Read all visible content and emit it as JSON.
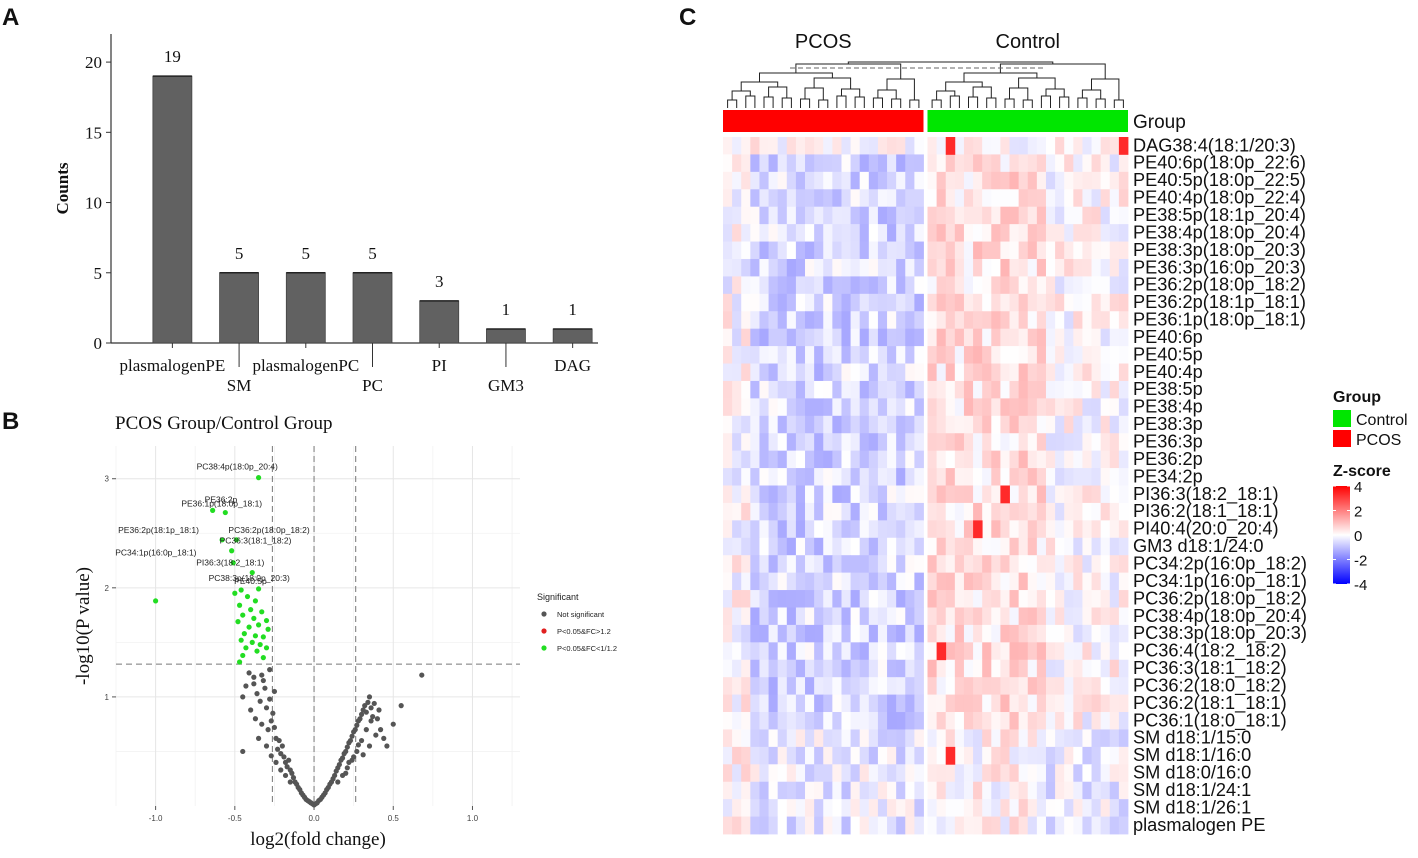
{
  "panels": {
    "a": {
      "letter": "A"
    },
    "b": {
      "letter": "B"
    },
    "c": {
      "letter": "C"
    }
  },
  "chart_data": [
    {
      "id": "panelA",
      "type": "bar",
      "title": "",
      "ylabel": "Counts",
      "xlabel": "",
      "ylim": [
        0,
        22
      ],
      "yticks": [
        0,
        5,
        10,
        15,
        20
      ],
      "categories": [
        "plasmalogenPE",
        "SM",
        "plasmalogenPC",
        "PC",
        "PI",
        "GM3",
        "DAG"
      ],
      "values": [
        19,
        5,
        5,
        5,
        3,
        1,
        1
      ],
      "bar_color": "#616161"
    },
    {
      "id": "panelB",
      "type": "scatter",
      "title": "PCOS Group/Control Group",
      "xlabel": "log2(fold change)",
      "ylabel": "-log10(P value)",
      "xlim": [
        -1.25,
        1.3
      ],
      "ylim": [
        0,
        3.3
      ],
      "xticks": [
        "-1.0",
        "-0.5",
        "0.0",
        "0.5",
        "1.0"
      ],
      "xtick_values": [
        -1.0,
        -0.5,
        0.0,
        0.5,
        1.0
      ],
      "yticks": [
        "1",
        "2",
        "3"
      ],
      "ytick_values": [
        1,
        2,
        3
      ],
      "thresholds": {
        "x": [
          -0.263,
          0.263
        ],
        "y": 1.301
      },
      "legend": {
        "title": "Significant",
        "position": "right",
        "items": [
          {
            "label": "Not significant",
            "color": "#555555"
          },
          {
            "label": "P<0.05&FC>1.2",
            "color": "#e02020"
          },
          {
            "label": "P<0.05&FC<1/1.2",
            "color": "#22dd22"
          }
        ]
      },
      "annotations": [
        {
          "text": "PC38:4p(18:0p_20:4)",
          "x": -0.35,
          "y": 3.01
        },
        {
          "text": "PE36:1p(18:0p_18:1)",
          "x": -0.56,
          "y": 2.69
        },
        {
          "text": "PE36:2p",
          "x": -0.64,
          "y": 2.71
        },
        {
          "text": "PE36:2p(18:1p_18:1)",
          "x": -0.58,
          "y": 2.44
        },
        {
          "text": "PC36:2p(18:0p_18:2)",
          "x": -0.49,
          "y": 2.44
        },
        {
          "text": "PC36:3(18:1_18:2)",
          "x": -0.52,
          "y": 2.34
        },
        {
          "text": "PC34:1p(16:0p_18:1)",
          "x": -0.51,
          "y": 2.23
        },
        {
          "text": "PI36:3(18:2_18:1)",
          "x": -0.39,
          "y": 2.14
        },
        {
          "text": "PE40:5p",
          "x": -0.46,
          "y": 1.98
        },
        {
          "text": "PC38:3p(18:0p_20:3)",
          "x": -0.35,
          "y": 1.99
        }
      ],
      "sig_down": [
        [
          -0.35,
          3.01
        ],
        [
          -0.56,
          2.69
        ],
        [
          -0.64,
          2.71
        ],
        [
          -0.58,
          2.44
        ],
        [
          -0.49,
          2.44
        ],
        [
          -0.52,
          2.34
        ],
        [
          -0.51,
          2.23
        ],
        [
          -0.39,
          2.14
        ],
        [
          -0.46,
          1.98
        ],
        [
          -0.35,
          1.99
        ],
        [
          -1.0,
          1.88
        ],
        [
          -0.5,
          1.95
        ],
        [
          -0.42,
          1.92
        ],
        [
          -0.37,
          1.88
        ],
        [
          -0.47,
          1.84
        ],
        [
          -0.4,
          1.8
        ],
        [
          -0.33,
          1.78
        ],
        [
          -0.45,
          1.75
        ],
        [
          -0.38,
          1.72
        ],
        [
          -0.3,
          1.7
        ],
        [
          -0.48,
          1.69
        ],
        [
          -0.35,
          1.66
        ],
        [
          -0.41,
          1.64
        ],
        [
          -0.29,
          1.62
        ],
        [
          -0.44,
          1.58
        ],
        [
          -0.37,
          1.56
        ],
        [
          -0.32,
          1.55
        ],
        [
          -0.46,
          1.52
        ],
        [
          -0.39,
          1.5
        ],
        [
          -0.34,
          1.48
        ],
        [
          -0.3,
          1.45
        ],
        [
          -0.43,
          1.45
        ],
        [
          -0.36,
          1.42
        ],
        [
          -0.45,
          1.38
        ],
        [
          -0.32,
          1.36
        ],
        [
          -0.47,
          1.32
        ]
      ],
      "sig_up": [],
      "nonsig": [
        [
          -0.45,
          1.0
        ],
        [
          -0.43,
          1.1
        ],
        [
          -0.41,
          1.22
        ],
        [
          -0.38,
          1.12
        ],
        [
          -0.36,
          1.03
        ],
        [
          -0.34,
          0.96
        ],
        [
          -0.32,
          1.15
        ],
        [
          -0.3,
          0.9
        ],
        [
          -0.28,
          0.98
        ],
        [
          -0.26,
          0.85
        ],
        [
          -0.4,
          0.88
        ],
        [
          -0.37,
          0.8
        ],
        [
          -0.33,
          0.75
        ],
        [
          -0.29,
          0.7
        ],
        [
          -0.27,
          0.78
        ],
        [
          -0.25,
          0.72
        ],
        [
          -0.24,
          0.62
        ],
        [
          -0.22,
          0.6
        ],
        [
          -0.23,
          0.52
        ],
        [
          -0.21,
          0.48
        ],
        [
          -0.2,
          0.55
        ],
        [
          -0.19,
          0.45
        ],
        [
          -0.18,
          0.4
        ],
        [
          -0.17,
          0.36
        ],
        [
          -0.16,
          0.42
        ],
        [
          -0.15,
          0.33
        ],
        [
          -0.14,
          0.3
        ],
        [
          -0.13,
          0.26
        ],
        [
          -0.12,
          0.22
        ],
        [
          -0.11,
          0.2
        ],
        [
          -0.1,
          0.17
        ],
        [
          -0.09,
          0.15
        ],
        [
          -0.08,
          0.12
        ],
        [
          -0.07,
          0.1
        ],
        [
          -0.06,
          0.08
        ],
        [
          -0.05,
          0.06
        ],
        [
          -0.04,
          0.05
        ],
        [
          -0.03,
          0.04
        ],
        [
          -0.02,
          0.03
        ],
        [
          -0.01,
          0.02
        ],
        [
          0.0,
          0.01
        ],
        [
          0.01,
          0.02
        ],
        [
          0.02,
          0.03
        ],
        [
          0.03,
          0.05
        ],
        [
          0.04,
          0.06
        ],
        [
          0.05,
          0.08
        ],
        [
          0.06,
          0.1
        ],
        [
          0.07,
          0.12
        ],
        [
          0.08,
          0.15
        ],
        [
          0.09,
          0.17
        ],
        [
          0.1,
          0.2
        ],
        [
          0.11,
          0.22
        ],
        [
          0.12,
          0.25
        ],
        [
          0.13,
          0.28
        ],
        [
          0.14,
          0.32
        ],
        [
          0.15,
          0.35
        ],
        [
          0.16,
          0.38
        ],
        [
          0.17,
          0.42
        ],
        [
          0.18,
          0.44
        ],
        [
          0.19,
          0.48
        ],
        [
          0.2,
          0.5
        ],
        [
          0.21,
          0.54
        ],
        [
          0.22,
          0.58
        ],
        [
          0.23,
          0.6
        ],
        [
          0.24,
          0.64
        ],
        [
          0.25,
          0.68
        ],
        [
          0.26,
          0.7
        ],
        [
          0.27,
          0.74
        ],
        [
          0.28,
          0.78
        ],
        [
          0.29,
          0.8
        ],
        [
          0.3,
          0.84
        ],
        [
          0.31,
          0.88
        ],
        [
          0.32,
          0.92
        ],
        [
          0.33,
          0.86
        ],
        [
          0.34,
          0.95
        ],
        [
          0.35,
          1.0
        ],
        [
          0.36,
          0.9
        ],
        [
          0.37,
          0.82
        ],
        [
          0.38,
          0.94
        ],
        [
          0.4,
          0.8
        ],
        [
          0.42,
          0.7
        ],
        [
          0.44,
          0.62
        ],
        [
          0.46,
          0.55
        ],
        [
          0.5,
          0.75
        ],
        [
          0.55,
          0.92
        ],
        [
          0.68,
          1.2
        ],
        [
          0.3,
          0.6
        ],
        [
          0.27,
          0.5
        ],
        [
          0.24,
          0.42
        ],
        [
          0.21,
          0.35
        ],
        [
          0.18,
          0.28
        ],
        [
          0.15,
          0.22
        ],
        [
          -0.15,
          0.22
        ],
        [
          -0.18,
          0.28
        ],
        [
          -0.21,
          0.33
        ],
        [
          -0.24,
          0.4
        ],
        [
          -0.27,
          0.46
        ],
        [
          -0.3,
          0.55
        ],
        [
          -0.35,
          0.62
        ],
        [
          -0.45,
          0.5
        ],
        [
          -0.33,
          1.2
        ],
        [
          -0.31,
          1.08
        ],
        [
          -0.28,
          1.25
        ],
        [
          -0.25,
          1.05
        ],
        [
          -0.38,
          1.18
        ],
        [
          0.2,
          0.3
        ],
        [
          0.25,
          0.45
        ],
        [
          0.28,
          0.56
        ],
        [
          0.33,
          0.7
        ],
        [
          0.36,
          0.78
        ],
        [
          0.39,
          0.65
        ],
        [
          0.41,
          0.88
        ],
        [
          0.35,
          0.55
        ],
        [
          0.31,
          0.47
        ],
        [
          0.22,
          0.4
        ]
      ]
    },
    {
      "id": "panelC",
      "type": "heatmap",
      "title": "",
      "column_groups": {
        "left": "PCOS",
        "right": "Control"
      },
      "group_row_label": "Group",
      "n_columns_per_group": 22,
      "row_labels": [
        "DAG38:4(18:1/20:3)",
        "PE40:6p(18:0p_22:6)",
        "PE40:5p(18:0p_22:5)",
        "PE40:4p(18:0p_22:4)",
        "PE38:5p(18:1p_20:4)",
        "PE38:4p(18:0p_20:4)",
        "PE38:3p(18:0p_20:3)",
        "PE36:3p(16:0p_20:3)",
        "PE36:2p(18:0p_18:2)",
        "PE36:2p(18:1p_18:1)",
        "PE36:1p(18:0p_18:1)",
        "PE40:6p",
        "PE40:5p",
        "PE40:4p",
        "PE38:5p",
        "PE38:4p",
        "PE38:3p",
        "PE36:3p",
        "PE36:2p",
        "PE34:2p",
        "PI36:3(18:2_18:1)",
        "PI36:2(18:1_18:1)",
        "PI40:4(20:0_20:4)",
        "GM3 d18:1/24:0",
        "PC34:2p(16:0p_18:2)",
        "PC34:1p(16:0p_18:1)",
        "PC36:2p(18:0p_18:2)",
        "PC38:4p(18:0p_20:4)",
        "PC38:3p(18:0p_20:3)",
        "PC36:4(18:2_18:2)",
        "PC36:3(18:1_18:2)",
        "PC36:2(18:0_18:2)",
        "PC36:2(18:1_18:1)",
        "PC36:1(18:0_18:1)",
        "SM d18:1/15:0",
        "SM d18:1/16:0",
        "SM d18:0/16:0",
        "SM d18:1/24:1",
        "SM d18:1/26:1",
        "plasmalogen PE"
      ],
      "legend_group": {
        "title": "Group",
        "items": [
          {
            "label": "Control",
            "color": "#00e600"
          },
          {
            "label": "PCOS",
            "color": "#ff0000"
          }
        ]
      },
      "legend_zscore": {
        "title": "Z-score",
        "ticks": [
          "4",
          "2",
          "0",
          "-2",
          "-4"
        ],
        "tick_values": [
          4,
          2,
          0,
          -2,
          -4
        ]
      }
    }
  ]
}
